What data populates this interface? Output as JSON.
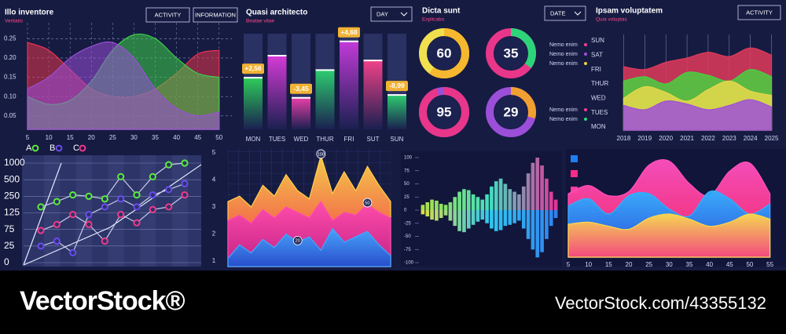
{
  "footer": {
    "brand": "VectorStock®",
    "url": "VectorStock.com/43355132"
  },
  "chart_data": [
    {
      "type": "area",
      "title": "Illo inventore",
      "subtitle": "Veritatis",
      "buttons": [
        "ACTIVITY",
        "INFORMATION"
      ],
      "x": [
        5,
        10,
        15,
        20,
        25,
        30,
        35,
        40,
        45,
        50
      ],
      "xlim": [
        5,
        53
      ],
      "xticks": [
        5,
        10,
        15,
        20,
        25,
        30,
        35,
        40,
        45,
        50
      ],
      "ylim": [
        0.015,
        0.275
      ],
      "yticks": [
        0.05,
        {
          "value": 0.1,
          "label": "0.10"
        },
        0.15,
        {
          "value": 0.2,
          "label": "0.20"
        },
        0.25
      ],
      "grid": true,
      "series": [
        {
          "color": "#e8344f",
          "values": [
            0.24,
            0.22,
            0.17,
            0.12,
            0.1,
            0.1,
            0.12,
            0.16,
            0.21,
            0.22
          ]
        },
        {
          "color": "#3ed04a",
          "values": [
            0.1,
            0.08,
            0.09,
            0.14,
            0.22,
            0.26,
            0.25,
            0.2,
            0.16,
            0.15
          ]
        },
        {
          "color": "#9b4fd8",
          "values": [
            0.12,
            0.15,
            0.2,
            0.23,
            0.24,
            0.2,
            0.12,
            0.07,
            0.05,
            0.06
          ]
        }
      ]
    },
    {
      "type": "bar",
      "title": "Quasi architecto",
      "subtitle": "Beatae vitae",
      "buttons": [
        "DAY"
      ],
      "categories": [
        "MON",
        "TUES",
        "WED",
        "THUR",
        "FRI",
        "SUT",
        "SUN"
      ],
      "values": [
        54,
        77,
        33,
        62,
        92,
        72,
        36
      ],
      "colors": [
        "#2ecc5a",
        "#d63ad8",
        "#e83fa8",
        "#2ecc70",
        "#c23ad8",
        "#f0418a",
        "#2ecc70"
      ],
      "badges": [
        "+2,56",
        null,
        "-3,45",
        null,
        "+4,68",
        null,
        "-8,99"
      ],
      "ylim": [
        0,
        100
      ]
    },
    {
      "type": "donut",
      "title": "Dicta sunt",
      "subtitle": "Explicabo",
      "buttons": [
        "DATE"
      ],
      "values": [
        60,
        35,
        95,
        29
      ],
      "colors": [
        "#f5b82e",
        "#2ed47a",
        "#e8368a",
        "#f0a030"
      ],
      "track_colors": [
        "#f0e050",
        "#e8368a",
        "#9b4fd8",
        "#9b4fd8"
      ]
    },
    {
      "type": "area",
      "title": "Ipsam voluptatem",
      "subtitle": "Quia voluptas",
      "buttons": [
        "ACTIVITY"
      ],
      "legend": [
        "Nemo enim",
        "Nemo enim",
        "Nemo enim",
        "Nemo enim",
        "Nemo enim"
      ],
      "legend_colors": [
        "#f0418a",
        "#a04fd8",
        "#f0d040",
        "#f0418a",
        "#2ed47a"
      ],
      "x": [
        2018,
        2019,
        2020,
        2021,
        2022,
        2023,
        2024,
        2025
      ],
      "xlim": [
        2017.5,
        2025.5
      ],
      "xticks": [
        2018,
        2019,
        2020,
        2021,
        2022,
        2023,
        2024,
        2025
      ],
      "ycategories": [
        "SUN",
        "SAT",
        "FRI",
        "THUR",
        "WED",
        "TUES",
        "MON"
      ],
      "ylim": [
        0,
        6
      ],
      "series": [
        {
          "color": "#e03a5a",
          "values": [
            4.2,
            4.0,
            4.5,
            4.8,
            5.2,
            4.9,
            5.5,
            5.0
          ]
        },
        {
          "color": "#48d040",
          "values": [
            3.2,
            3.5,
            3.0,
            3.8,
            3.6,
            3.2,
            4.0,
            3.5
          ]
        },
        {
          "color": "#e8d84a",
          "values": [
            2.0,
            2.8,
            2.4,
            1.8,
            2.6,
            3.2,
            2.5,
            2.2
          ]
        },
        {
          "color": "#a050d8",
          "values": [
            1.5,
            1.2,
            1.8,
            1.6,
            1.2,
            1.5,
            1.9,
            1.4
          ]
        }
      ]
    },
    {
      "type": "line",
      "categories": [
        null,
        null,
        null,
        null,
        null,
        null,
        null,
        null,
        null,
        null
      ],
      "yscale": "tick-spaced",
      "ylim": [
        0,
        1000
      ],
      "yticks": [
        0,
        25,
        75,
        125,
        250,
        500,
        1000
      ],
      "grid": true,
      "series": [
        {
          "name": "A",
          "color": "#5beb3a",
          "values": [
            170,
            210,
            270,
            250,
            230,
            590,
            270,
            590,
            950,
            1000
          ]
        },
        {
          "name": "B",
          "color": "#6a4cf0",
          "values": [
            25,
            40,
            15,
            120,
            170,
            230,
            170,
            270,
            350,
            440
          ]
        },
        {
          "name": "C",
          "color": "#f0388a",
          "values": [
            72,
            90,
            120,
            90,
            40,
            120,
            95,
            150,
            170,
            270
          ]
        }
      ]
    },
    {
      "type": "area",
      "categories": [
        null,
        null,
        null,
        null,
        null,
        null,
        null,
        null,
        null,
        null,
        null,
        null,
        null,
        null,
        null
      ],
      "ylim": [
        0.85,
        5.15
      ],
      "yticks": [
        1,
        2,
        3,
        4,
        5
      ],
      "series": [
        {
          "gradient": [
            "#ffd24a",
            "#ff3a4a"
          ],
          "values": [
            3.2,
            3.4,
            3.0,
            3.8,
            3.4,
            4.2,
            3.6,
            3.3,
            4.9,
            3.5,
            4.3,
            3.6,
            4.5,
            3.8,
            3.2
          ],
          "marker_labels": [
            null,
            null,
            null,
            null,
            null,
            null,
            null,
            null,
            "100",
            null,
            null,
            null,
            null,
            null,
            null
          ]
        },
        {
          "gradient": [
            "#ff4ab0",
            "#c0208a"
          ],
          "values": [
            2.5,
            2.7,
            2.4,
            2.9,
            2.6,
            3.0,
            2.8,
            2.6,
            3.2,
            2.5,
            2.8,
            2.7,
            3.1,
            2.8,
            2.6
          ],
          "marker_labels": [
            null,
            null,
            null,
            null,
            null,
            null,
            null,
            null,
            null,
            null,
            null,
            null,
            "50",
            null,
            null
          ]
        },
        {
          "gradient": [
            "#40a8ff",
            "#2050d0"
          ],
          "values": [
            1.1,
            1.6,
            1.3,
            1.8,
            1.5,
            2.0,
            1.7,
            1.9,
            1.4,
            2.2,
            1.7,
            1.9,
            2.1,
            1.6,
            1.2
          ],
          "marker_labels": [
            null,
            null,
            null,
            null,
            null,
            null,
            "20",
            null,
            null,
            null,
            null,
            null,
            null,
            null,
            null
          ]
        }
      ]
    },
    {
      "type": "mirror-bar",
      "categories": [
        null,
        null,
        null,
        null,
        null,
        null,
        null,
        null,
        null,
        null,
        null,
        null,
        null,
        null,
        null,
        null,
        null,
        null,
        null,
        null,
        null,
        null,
        null,
        null,
        null,
        null,
        null,
        null,
        null,
        null
      ],
      "ylim": [
        -100,
        100
      ],
      "yticks": [
        100,
        75,
        50,
        25,
        0,
        -25,
        -50,
        -75,
        -100
      ],
      "series": [
        {
          "gradient": [
            "#b0e040",
            "#40e0c0",
            "#e8309a"
          ],
          "values": [
            10,
            15,
            20,
            18,
            12,
            10,
            15,
            25,
            35,
            40,
            38,
            30,
            25,
            20,
            30,
            45,
            55,
            60,
            50,
            40,
            35,
            30,
            45,
            70,
            90,
            100,
            85,
            60,
            35,
            20
          ]
        },
        {
          "gradient": [
            "#e0e040",
            "#30c8f0",
            "#3080f0"
          ],
          "values": [
            -8,
            -12,
            -18,
            -20,
            -15,
            -10,
            -20,
            -30,
            -40,
            -42,
            -35,
            -28,
            -22,
            -18,
            -25,
            -35,
            -40,
            -38,
            -30,
            -28,
            -25,
            -20,
            -35,
            -55,
            -75,
            -90,
            -80,
            -55,
            -30,
            -15
          ]
        }
      ]
    },
    {
      "type": "area",
      "x": [
        5,
        10,
        15,
        20,
        25,
        30,
        35,
        40,
        45,
        50,
        55
      ],
      "xlim": [
        5,
        58
      ],
      "xticks": [
        5,
        10,
        15,
        20,
        25,
        30,
        35,
        40,
        45,
        50,
        55
      ],
      "ylim": [
        0,
        100
      ],
      "series": [
        {
          "gradient": [
            "#ff50c0",
            "#ff2a6a"
          ],
          "values": [
            60,
            68,
            58,
            62,
            88,
            92,
            70,
            58,
            82,
            90,
            60
          ]
        },
        {
          "gradient": [
            "#30b0ff",
            "#1f50e0"
          ],
          "values": [
            48,
            55,
            40,
            58,
            60,
            45,
            38,
            62,
            55,
            40,
            50
          ]
        },
        {
          "gradient": [
            "#ffd84a",
            "#ff4a7a"
          ],
          "values": [
            30,
            32,
            28,
            25,
            36,
            40,
            35,
            28,
            32,
            40,
            35
          ]
        }
      ]
    }
  ]
}
